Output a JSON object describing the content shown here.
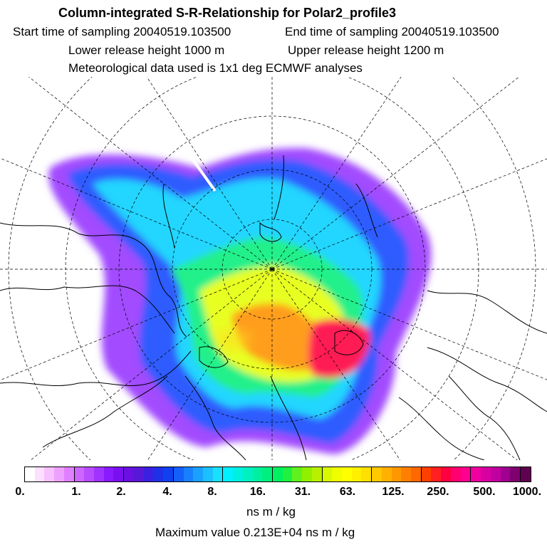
{
  "header": {
    "title": "Column-integrated S-R-Relationship for Polar2_profile3",
    "start": "Start time of sampling 20040519.103500",
    "end": "End time of sampling 20040519.103500",
    "lower": "Lower release height 1000 m",
    "upper": "Upper release height 1200 m",
    "met": "Meteorological data used is 1x1 deg ECMWF analyses"
  },
  "colorbar": {
    "ticks": [
      "0.",
      "1.",
      "2.",
      "4.",
      "8.",
      "16.",
      "31.",
      "63.",
      "125.",
      "250.",
      "500.",
      "1000."
    ],
    "colors": [
      "#ffffff",
      "#fde0ff",
      "#f7c0ff",
      "#eea0ff",
      "#e080ff",
      "#cc66ff",
      "#b84cff",
      "#a033ff",
      "#8a1aff",
      "#7a10f0",
      "#6a10e0",
      "#5818d8",
      "#3a20e0",
      "#2030e8",
      "#1040f0",
      "#1460f8",
      "#1880ff",
      "#1aa0ff",
      "#1ac0ff",
      "#1ae0ff",
      "#00f0ff",
      "#00f0e0",
      "#00f0c0",
      "#00f0a0",
      "#00f080",
      "#00f060",
      "#20f040",
      "#60f020",
      "#90f000",
      "#b8f000",
      "#d8f800",
      "#f0ff00",
      "#ffff00",
      "#fff000",
      "#ffe000",
      "#ffc800",
      "#ffb000",
      "#ff9800",
      "#ff8000",
      "#ff6800",
      "#ff4000",
      "#ff2020",
      "#ff0040",
      "#ff0070",
      "#ff0090",
      "#f000a0",
      "#d800a0",
      "#c000a0",
      "#a00090",
      "#800070",
      "#600050"
    ],
    "unit": "ns m / kg",
    "max_label": "Maximum value  0.213E+04 ns m / kg"
  },
  "map": {
    "projection": "north polar stereographic",
    "plume_colors": {
      "outer": "#a24bff",
      "blue": "#2f5cff",
      "cyan": "#22d6ff",
      "green": "#22f08a",
      "yellow": "#e8ff22",
      "orange": "#ff9d1a",
      "red": "#ff1f55"
    }
  }
}
